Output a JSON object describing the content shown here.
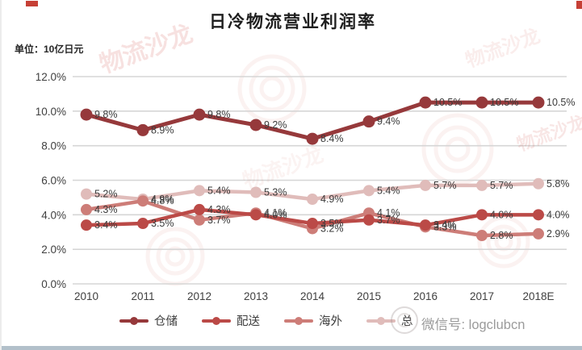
{
  "page": {
    "title": "日冷物流营业利润率",
    "unit_label": "单位：10亿日元",
    "watermark_diagonal": "物流沙龙",
    "wechat_label": "微信号: logclubcn"
  },
  "chart_data": {
    "type": "line",
    "title": "日冷物流营业利润率",
    "unit": "单位：10亿日元",
    "categories": [
      "2010",
      "2011",
      "2012",
      "2013",
      "2014",
      "2015",
      "2016",
      "2017",
      "2018E"
    ],
    "series": [
      {
        "name": "仓储",
        "color": "#96393b",
        "values": [
          9.8,
          8.9,
          9.8,
          9.2,
          8.4,
          9.4,
          10.5,
          10.5,
          10.5
        ]
      },
      {
        "name": "配送",
        "color": "#bb4a47",
        "values": [
          3.4,
          3.5,
          4.3,
          4.0,
          3.5,
          3.7,
          3.4,
          4.0,
          4.0
        ]
      },
      {
        "name": "海外",
        "color": "#cd7d78",
        "values": [
          4.3,
          4.8,
          3.7,
          4.1,
          3.2,
          4.1,
          3.3,
          2.8,
          2.9
        ]
      },
      {
        "name": "总",
        "color": "#e0bcba",
        "values": [
          5.2,
          4.9,
          5.4,
          5.3,
          4.9,
          5.4,
          5.7,
          5.7,
          5.8
        ]
      }
    ],
    "ylim": [
      0,
      12
    ],
    "ytick_step": 2,
    "ytick_labels": [
      "0.0%",
      "2.0%",
      "4.0%",
      "6.0%",
      "8.0%",
      "10.0%",
      "12.0%"
    ],
    "xlabel": "",
    "ylabel": "",
    "grid": true,
    "legend_position": "bottom",
    "data_label_format": "one_decimal_percent"
  }
}
